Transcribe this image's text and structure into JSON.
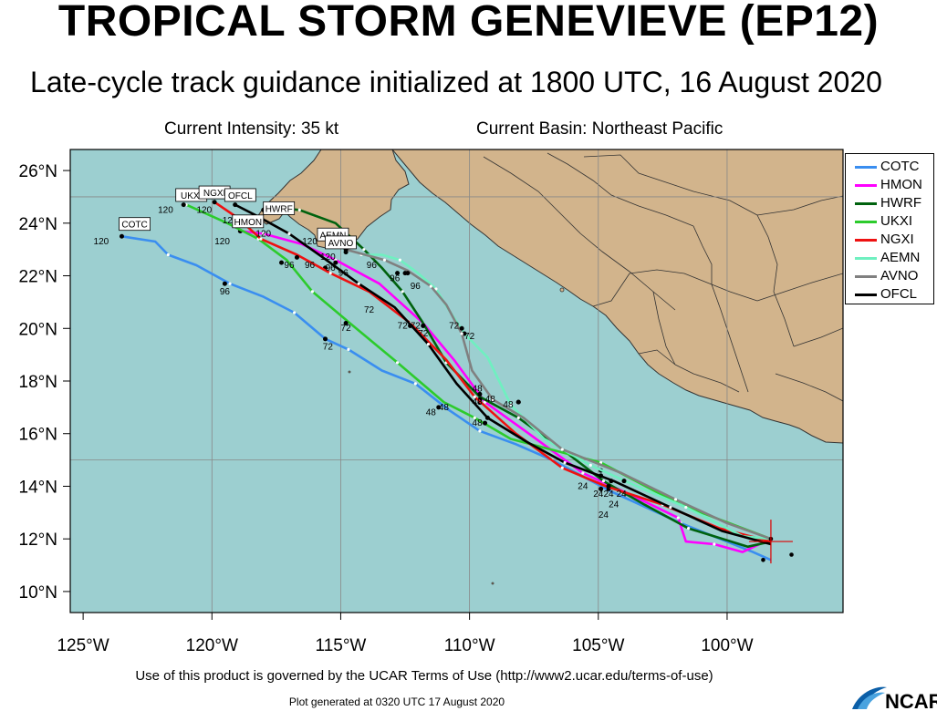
{
  "header": {
    "title": "TROPICAL STORM GENEVIEVE (EP12)",
    "subtitle": "Late-cycle track guidance initialized at 1800 UTC, 16 August 2020",
    "intensity": "Current Intensity: 35 kt",
    "basin": "Current Basin: Northeast Pacific"
  },
  "footer": {
    "terms": "Use of this product is governed by the UCAR Terms of Use (http://www2.ucar.edu/terms-of-use)",
    "generated": "Plot generated at 0320 UTC   17 August 2020",
    "logo": "NCAR"
  },
  "colors": {
    "ocean": "#9ccfd0",
    "land": "#d2b48c",
    "border": "#333333",
    "storm_center": "#e00000"
  },
  "chart_data": {
    "type": "line",
    "x_label_unit": "longitude",
    "y_label_unit": "latitude",
    "xlim": [
      -125.5,
      -95.5
    ],
    "ylim": [
      9.2,
      26.8
    ],
    "xticks": [
      -125,
      -120,
      -115,
      -110,
      -105,
      -100
    ],
    "xtick_labels": [
      "125°W",
      "120°W",
      "115°W",
      "110°W",
      "105°W",
      "100°W"
    ],
    "yticks": [
      10,
      12,
      14,
      16,
      18,
      20,
      22,
      24,
      26
    ],
    "ytick_labels": [
      "10°N",
      "12°N",
      "14°N",
      "16°N",
      "18°N",
      "20°N",
      "22°N",
      "24°N",
      "26°N"
    ],
    "storm_center": [
      -98.3,
      11.9
    ],
    "legend_position": "right",
    "series": [
      {
        "name": "COTC",
        "color": "#3a8ef0",
        "lon": [
          -98.3,
          -99.0,
          -101.8,
          -104.5,
          -106.8,
          -108.2,
          -109.6,
          -110.8,
          -112.1,
          -113.4,
          -114.7,
          -115.6,
          -116.8,
          -118.0,
          -119.3,
          -120.6,
          -121.7,
          -122.2,
          -123.5
        ],
        "lat": [
          11.2,
          11.5,
          12.6,
          13.8,
          15.0,
          15.6,
          16.1,
          16.9,
          17.9,
          18.4,
          19.2,
          19.6,
          20.6,
          21.2,
          21.7,
          22.4,
          22.8,
          23.3,
          23.5
        ],
        "hours": [
          24,
          48,
          72,
          96,
          120
        ],
        "hour_pts": [
          [
            -104.9,
            13.9
          ],
          [
            -111.2,
            17.0
          ],
          [
            -115.6,
            19.6
          ],
          [
            -119.5,
            21.7
          ],
          [
            -123.5,
            23.5
          ]
        ],
        "label_pos": [
          -123.0,
          23.9
        ]
      },
      {
        "name": "HMON",
        "color": "#ff00ff",
        "lon": [
          -98.3,
          -99.4,
          -100.5,
          -101.6,
          -101.9,
          -103.8,
          -105.6,
          -107.7,
          -109.4,
          -110.6,
          -111.8,
          -113.5,
          -115.2,
          -116.5,
          -118.0,
          -118.9
        ],
        "lat": [
          12.0,
          11.5,
          11.8,
          11.9,
          12.8,
          13.7,
          14.5,
          16.0,
          17.2,
          18.8,
          20.2,
          21.7,
          22.6,
          23.2,
          23.6,
          23.7
        ],
        "hours": [
          24,
          48,
          72,
          96,
          120
        ],
        "hour_pts": [
          [
            -104.6,
            14.0
          ],
          [
            -109.6,
            17.2
          ],
          [
            -111.8,
            20.1
          ],
          [
            -115.6,
            22.3
          ],
          [
            -118.9,
            23.7
          ]
        ],
        "label_pos": [
          -118.6,
          24.0
        ]
      },
      {
        "name": "HWRF",
        "color": "#00620e",
        "lon": [
          -98.3,
          -99.2,
          -101.5,
          -103.2,
          -104.8,
          -106.4,
          -108.1,
          -109.6,
          -110.9,
          -111.8,
          -112.6,
          -113.4,
          -114.1,
          -115.2,
          -116.6,
          -117.5,
          -118.0
        ],
        "lat": [
          11.9,
          11.7,
          12.4,
          13.3,
          14.2,
          15.4,
          16.6,
          17.4,
          18.7,
          20.2,
          21.4,
          22.3,
          23.0,
          24.0,
          24.5,
          24.6,
          24.5
        ],
        "hours": [
          24,
          48,
          72,
          96,
          120
        ],
        "hour_pts": [
          [
            -104.6,
            13.9
          ],
          [
            -109.6,
            17.3
          ],
          [
            -111.8,
            20.1
          ],
          [
            -112.5,
            22.1
          ],
          [
            -118.0,
            24.5
          ]
        ],
        "label_pos": [
          -117.4,
          24.5
        ]
      },
      {
        "name": "UKXI",
        "color": "#2ccb2c",
        "lon": [
          -98.3,
          -101.8,
          -104.9,
          -108.4,
          -109.8,
          -111.0,
          -112.8,
          -114.4,
          -116.1,
          -117.1,
          -118.2,
          -119.4,
          -121.0
        ],
        "lat": [
          12.0,
          13.3,
          14.9,
          15.8,
          16.6,
          17.2,
          18.7,
          20.0,
          21.4,
          22.6,
          23.4,
          24.0,
          24.7
        ],
        "hours": [
          24,
          48,
          72,
          96,
          120
        ],
        "hour_pts": [
          [
            -104.9,
            14.6
          ],
          [
            -109.4,
            16.4
          ],
          [
            -114.8,
            20.2
          ],
          [
            -117.3,
            22.5
          ],
          [
            -121.1,
            24.7
          ]
        ],
        "label_pos": [
          -120.8,
          25.0
        ]
      },
      {
        "name": "NGXI",
        "color": "#ee1111",
        "lon": [
          -98.3,
          -100.3,
          -102.5,
          -104.7,
          -106.4,
          -108.2,
          -109.8,
          -110.9,
          -112.3,
          -113.9,
          -115.4,
          -116.7,
          -118.1,
          -119.0,
          -119.9
        ],
        "lat": [
          11.9,
          12.4,
          13.3,
          14.0,
          14.7,
          16.0,
          17.4,
          18.8,
          20.2,
          21.4,
          22.1,
          22.8,
          23.4,
          24.2,
          24.8
        ],
        "hours": [
          24,
          48,
          72,
          96,
          120
        ],
        "hour_pts": [
          [
            -104.6,
            14.0
          ],
          [
            -109.6,
            17.5
          ],
          [
            -112.3,
            20.1
          ],
          [
            -116.7,
            22.7
          ],
          [
            -119.9,
            24.8
          ]
        ],
        "label_pos": [
          -119.9,
          25.1
        ]
      },
      {
        "name": "AEMN",
        "color": "#6ff0c0",
        "lon": [
          -98.3,
          -99.4,
          -101.6,
          -103.5,
          -105.3,
          -107.1,
          -108.4,
          -109.3,
          -110.2,
          -110.8,
          -111.3,
          -112.0,
          -112.7,
          -113.4,
          -114.2
        ],
        "lat": [
          12.0,
          12.1,
          13.2,
          14.0,
          14.8,
          15.8,
          17.1,
          18.9,
          19.8,
          20.7,
          21.5,
          22.1,
          22.6,
          22.8,
          22.8
        ],
        "hours": [
          24,
          48,
          72,
          96,
          120
        ],
        "hour_pts": [
          [
            -104.9,
            14.4
          ],
          [
            -108.1,
            17.2
          ],
          [
            -110.2,
            19.8
          ],
          [
            -112.8,
            22.1
          ],
          [
            -114.8,
            22.9
          ]
        ],
        "label_pos": [
          -115.3,
          23.5
        ]
      },
      {
        "name": "AVNO",
        "color": "#808080",
        "lon": [
          -98.3,
          -100.0,
          -102.0,
          -104.1,
          -106.4,
          -107.9,
          -109.1,
          -109.9,
          -110.3,
          -110.9,
          -111.5,
          -112.4,
          -113.3,
          -114.8
        ],
        "lat": [
          12.0,
          12.6,
          13.5,
          14.5,
          15.4,
          16.6,
          17.3,
          18.4,
          19.8,
          20.9,
          21.6,
          22.2,
          22.6,
          23.0
        ],
        "hours": [
          24,
          48,
          72,
          96,
          120
        ],
        "hour_pts": [
          [
            -104.0,
            14.2
          ],
          [
            -108.1,
            17.2
          ],
          [
            -110.3,
            20.0
          ],
          [
            -112.4,
            22.1
          ],
          [
            -114.8,
            23.0
          ]
        ],
        "label_pos": [
          -115.0,
          23.2
        ]
      },
      {
        "name": "OFCL",
        "color": "#000000",
        "lon": [
          -98.3,
          -100.2,
          -102.2,
          -104.4,
          -106.3,
          -107.8,
          -109.3,
          -110.5,
          -111.6,
          -112.9,
          -114.3,
          -115.7,
          -117.0,
          -118.3,
          -119.1
        ],
        "lat": [
          11.8,
          12.3,
          13.2,
          14.2,
          14.9,
          15.7,
          16.6,
          17.9,
          19.4,
          20.8,
          21.7,
          22.7,
          23.6,
          24.3,
          24.7
        ],
        "hours": [
          24,
          48,
          72,
          96,
          120
        ],
        "hour_pts": [
          [
            -104.5,
            14.2
          ],
          [
            -109.3,
            16.6
          ],
          [
            -112.3,
            20.1
          ],
          [
            -115.2,
            22.5
          ],
          [
            -119.1,
            24.7
          ]
        ],
        "label_pos": [
          -118.9,
          25.0
        ]
      }
    ],
    "hour_labels": [
      {
        "text": "24",
        "lon": -105.6,
        "lat": 13.9
      },
      {
        "text": "24",
        "lon": -105.0,
        "lat": 13.6
      },
      {
        "text": "24",
        "lon": -104.6,
        "lat": 13.6
      },
      {
        "text": "24",
        "lon": -104.1,
        "lat": 13.6
      },
      {
        "text": "24",
        "lon": -104.4,
        "lat": 13.2
      },
      {
        "text": "24",
        "lon": -104.8,
        "lat": 12.8
      },
      {
        "text": "48",
        "lon": -111.5,
        "lat": 16.7
      },
      {
        "text": "48",
        "lon": -111.0,
        "lat": 16.9
      },
      {
        "text": "48",
        "lon": -109.7,
        "lat": 16.3
      },
      {
        "text": "48",
        "lon": -109.7,
        "lat": 17.1
      },
      {
        "text": "48",
        "lon": -109.7,
        "lat": 17.6
      },
      {
        "text": "48",
        "lon": -109.2,
        "lat": 17.2
      },
      {
        "text": "48",
        "lon": -108.5,
        "lat": 17.0
      },
      {
        "text": "72",
        "lon": -115.5,
        "lat": 19.2
      },
      {
        "text": "72",
        "lon": -114.8,
        "lat": 19.9
      },
      {
        "text": "72",
        "lon": -113.9,
        "lat": 20.6
      },
      {
        "text": "72",
        "lon": -112.6,
        "lat": 20.0
      },
      {
        "text": "72",
        "lon": -112.1,
        "lat": 20.0
      },
      {
        "text": "72",
        "lon": -111.8,
        "lat": 19.7
      },
      {
        "text": "72",
        "lon": -110.6,
        "lat": 20.0
      },
      {
        "text": "72",
        "lon": -110.0,
        "lat": 19.6
      },
      {
        "text": "96",
        "lon": -119.5,
        "lat": 21.3
      },
      {
        "text": "96",
        "lon": -117.0,
        "lat": 22.3
      },
      {
        "text": "96",
        "lon": -116.2,
        "lat": 22.3
      },
      {
        "text": "96",
        "lon": -115.4,
        "lat": 22.2
      },
      {
        "text": "96",
        "lon": -114.9,
        "lat": 22.0
      },
      {
        "text": "96",
        "lon": -113.8,
        "lat": 22.3
      },
      {
        "text": "96",
        "lon": -112.9,
        "lat": 21.8
      },
      {
        "text": "96",
        "lon": -112.1,
        "lat": 21.5
      },
      {
        "text": "120",
        "lon": -124.3,
        "lat": 23.2
      },
      {
        "text": "120",
        "lon": -121.8,
        "lat": 24.4
      },
      {
        "text": "120",
        "lon": -120.3,
        "lat": 24.4
      },
      {
        "text": "120",
        "lon": -119.3,
        "lat": 24.0
      },
      {
        "text": "120",
        "lon": -118.0,
        "lat": 23.5
      },
      {
        "text": "120",
        "lon": -116.2,
        "lat": 23.2
      },
      {
        "text": "120",
        "lon": -115.5,
        "lat": 22.6
      },
      {
        "text": "120",
        "lon": -119.6,
        "lat": 23.2
      }
    ]
  }
}
